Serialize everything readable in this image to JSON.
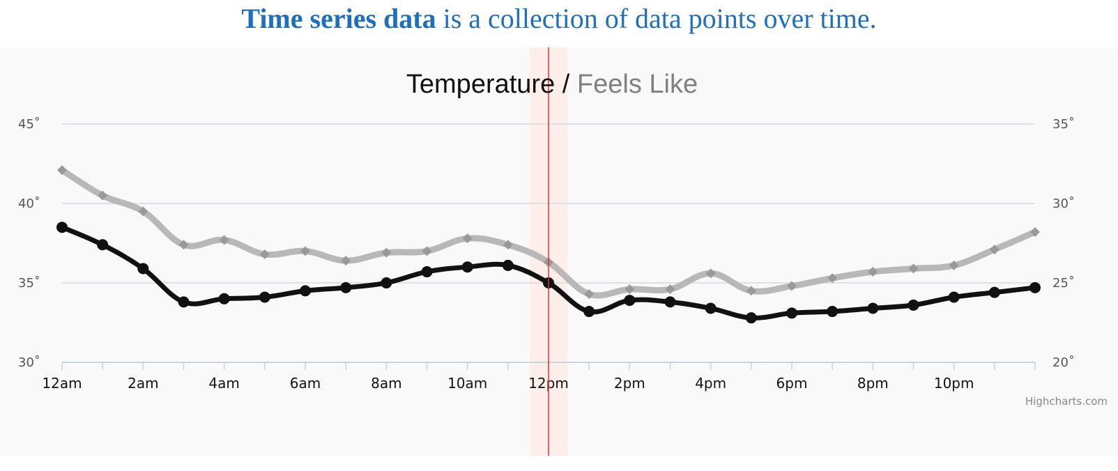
{
  "heading": {
    "bold": "Time series data",
    "rest": " is a collection of data points over time."
  },
  "chart_data": {
    "type": "line",
    "title_main": "Temperature",
    "title_separator": " / ",
    "title_secondary": "Feels Like",
    "credit": "Highcharts.com",
    "x_hours": [
      0,
      1,
      2,
      3,
      4,
      5,
      6,
      7,
      8,
      9,
      10,
      11,
      12,
      13,
      14,
      15,
      16,
      17,
      18,
      19,
      20,
      21,
      22,
      23,
      24
    ],
    "x_tick_labels": [
      "12am",
      "2am",
      "4am",
      "6am",
      "8am",
      "10am",
      "12pm",
      "2pm",
      "4pm",
      "6pm",
      "8pm",
      "10pm"
    ],
    "y_left": {
      "ticks": [
        30,
        35,
        40,
        45
      ],
      "range": [
        30,
        45
      ],
      "suffix": "˚"
    },
    "y_right": {
      "ticks": [
        20,
        25,
        30,
        35
      ],
      "range": [
        20,
        35
      ],
      "suffix": "˚"
    },
    "series": [
      {
        "name": "Feels Like",
        "axis": "right",
        "color": "#b8b8b8",
        "marker_color": "#999999",
        "marker": "diamond",
        "values": [
          32.1,
          30.5,
          29.5,
          27.4,
          27.7,
          26.8,
          27.0,
          26.4,
          26.9,
          27.0,
          27.8,
          27.4,
          26.3,
          24.3,
          24.6,
          24.6,
          25.6,
          24.5,
          24.8,
          25.3,
          25.7,
          25.9,
          26.1,
          27.1,
          28.2
        ]
      },
      {
        "name": "Temperature",
        "axis": "left",
        "color": "#111111",
        "marker_color": "#111111",
        "marker": "circle",
        "values": [
          38.5,
          37.4,
          35.9,
          33.8,
          34.0,
          34.1,
          34.5,
          34.7,
          35.0,
          35.7,
          36.0,
          36.1,
          35.0,
          33.2,
          33.9,
          33.8,
          33.4,
          32.8,
          33.1,
          33.2,
          33.4,
          33.6,
          34.1,
          34.4,
          34.7
        ]
      }
    ],
    "current_time_hour": 12,
    "highlight_color": "#fdeeea",
    "current_line_color": "#e0303a",
    "grid": true,
    "grid_color": "#d4dbe3",
    "axis_color": "#c5d3e3"
  }
}
